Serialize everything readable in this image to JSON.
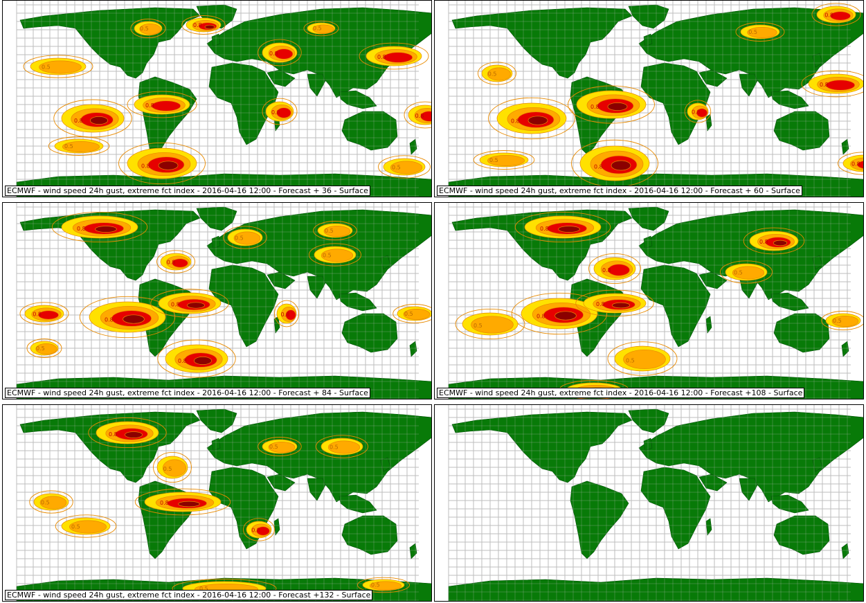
{
  "colors": {
    "land": "#087A08",
    "grid": "#BDBDBD",
    "contour": "#E88A00",
    "level_0_3": "#FFE100",
    "level_0_5": "#FFAA00",
    "level_0_8": "#E60000",
    "level_0_9": "#8B0000",
    "ocean": "#FFFFFF"
  },
  "contour_labels": [
    "0.3",
    "0.5",
    "0.8"
  ],
  "panels": [
    {
      "caption": "ECMWF - wind speed 24h gust, extreme fct index - 2016-04-16 12:00 - Forecast + 36 - Surface",
      "has_data": true
    },
    {
      "caption": "ECMWF - wind speed 24h gust, extreme fct index - 2016-04-16 12:00 - Forecast + 60 - Surface",
      "has_data": true
    },
    {
      "caption": "ECMWF - wind speed 24h gust, extreme fct index - 2016-04-16 12:00 - Forecast + 84 - Surface",
      "has_data": true
    },
    {
      "caption": "ECMWF - wind speed 24h gust, extreme fct index - 2016-04-16 12:00 - Forecast +108 - Surface",
      "has_data": true
    },
    {
      "caption": "ECMWF - wind speed 24h gust, extreme fct index - 2016-04-16 12:00 - Forecast +132 - Surface",
      "has_data": true
    },
    {
      "caption": "",
      "has_data": false
    }
  ]
}
